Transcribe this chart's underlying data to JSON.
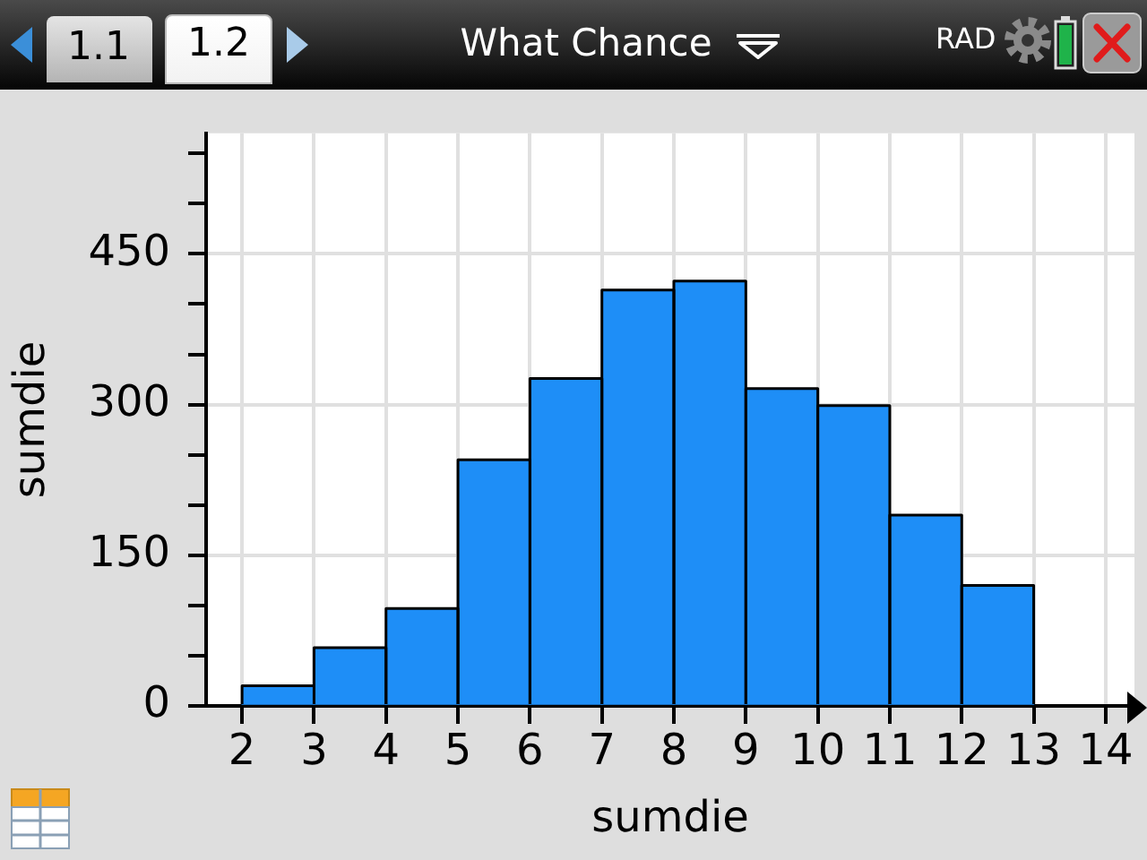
{
  "chart_data": {
    "type": "histogram",
    "title": "What Chance",
    "xlabel": "sumdie",
    "ylabel": "sumdie",
    "bins": [
      2,
      3,
      4,
      5,
      6,
      7,
      8,
      9,
      10,
      11,
      12,
      13
    ],
    "values": [
      20,
      58,
      97,
      245,
      326,
      414,
      423,
      316,
      299,
      190,
      120
    ],
    "color": "#1e8ef7",
    "xlim": [
      1.5,
      14.4
    ],
    "xticks": [
      2,
      3,
      4,
      5,
      6,
      7,
      8,
      9,
      10,
      11,
      12,
      13,
      14
    ],
    "ylim": [
      0,
      570
    ],
    "yticks": [
      0,
      {
        "value": 50,
        "label": null
      },
      {
        "value": 100,
        "label": null
      },
      150,
      {
        "value": 200,
        "label": null
      },
      {
        "value": 250,
        "label": null
      },
      300,
      {
        "value": 350,
        "label": null
      },
      {
        "value": 400,
        "label": null
      },
      450,
      {
        "value": 500,
        "label": null
      },
      {
        "value": 550,
        "label": null
      }
    ],
    "grid": true,
    "annotations": [
      "1.1",
      "1.2",
      "RAD"
    ]
  }
}
